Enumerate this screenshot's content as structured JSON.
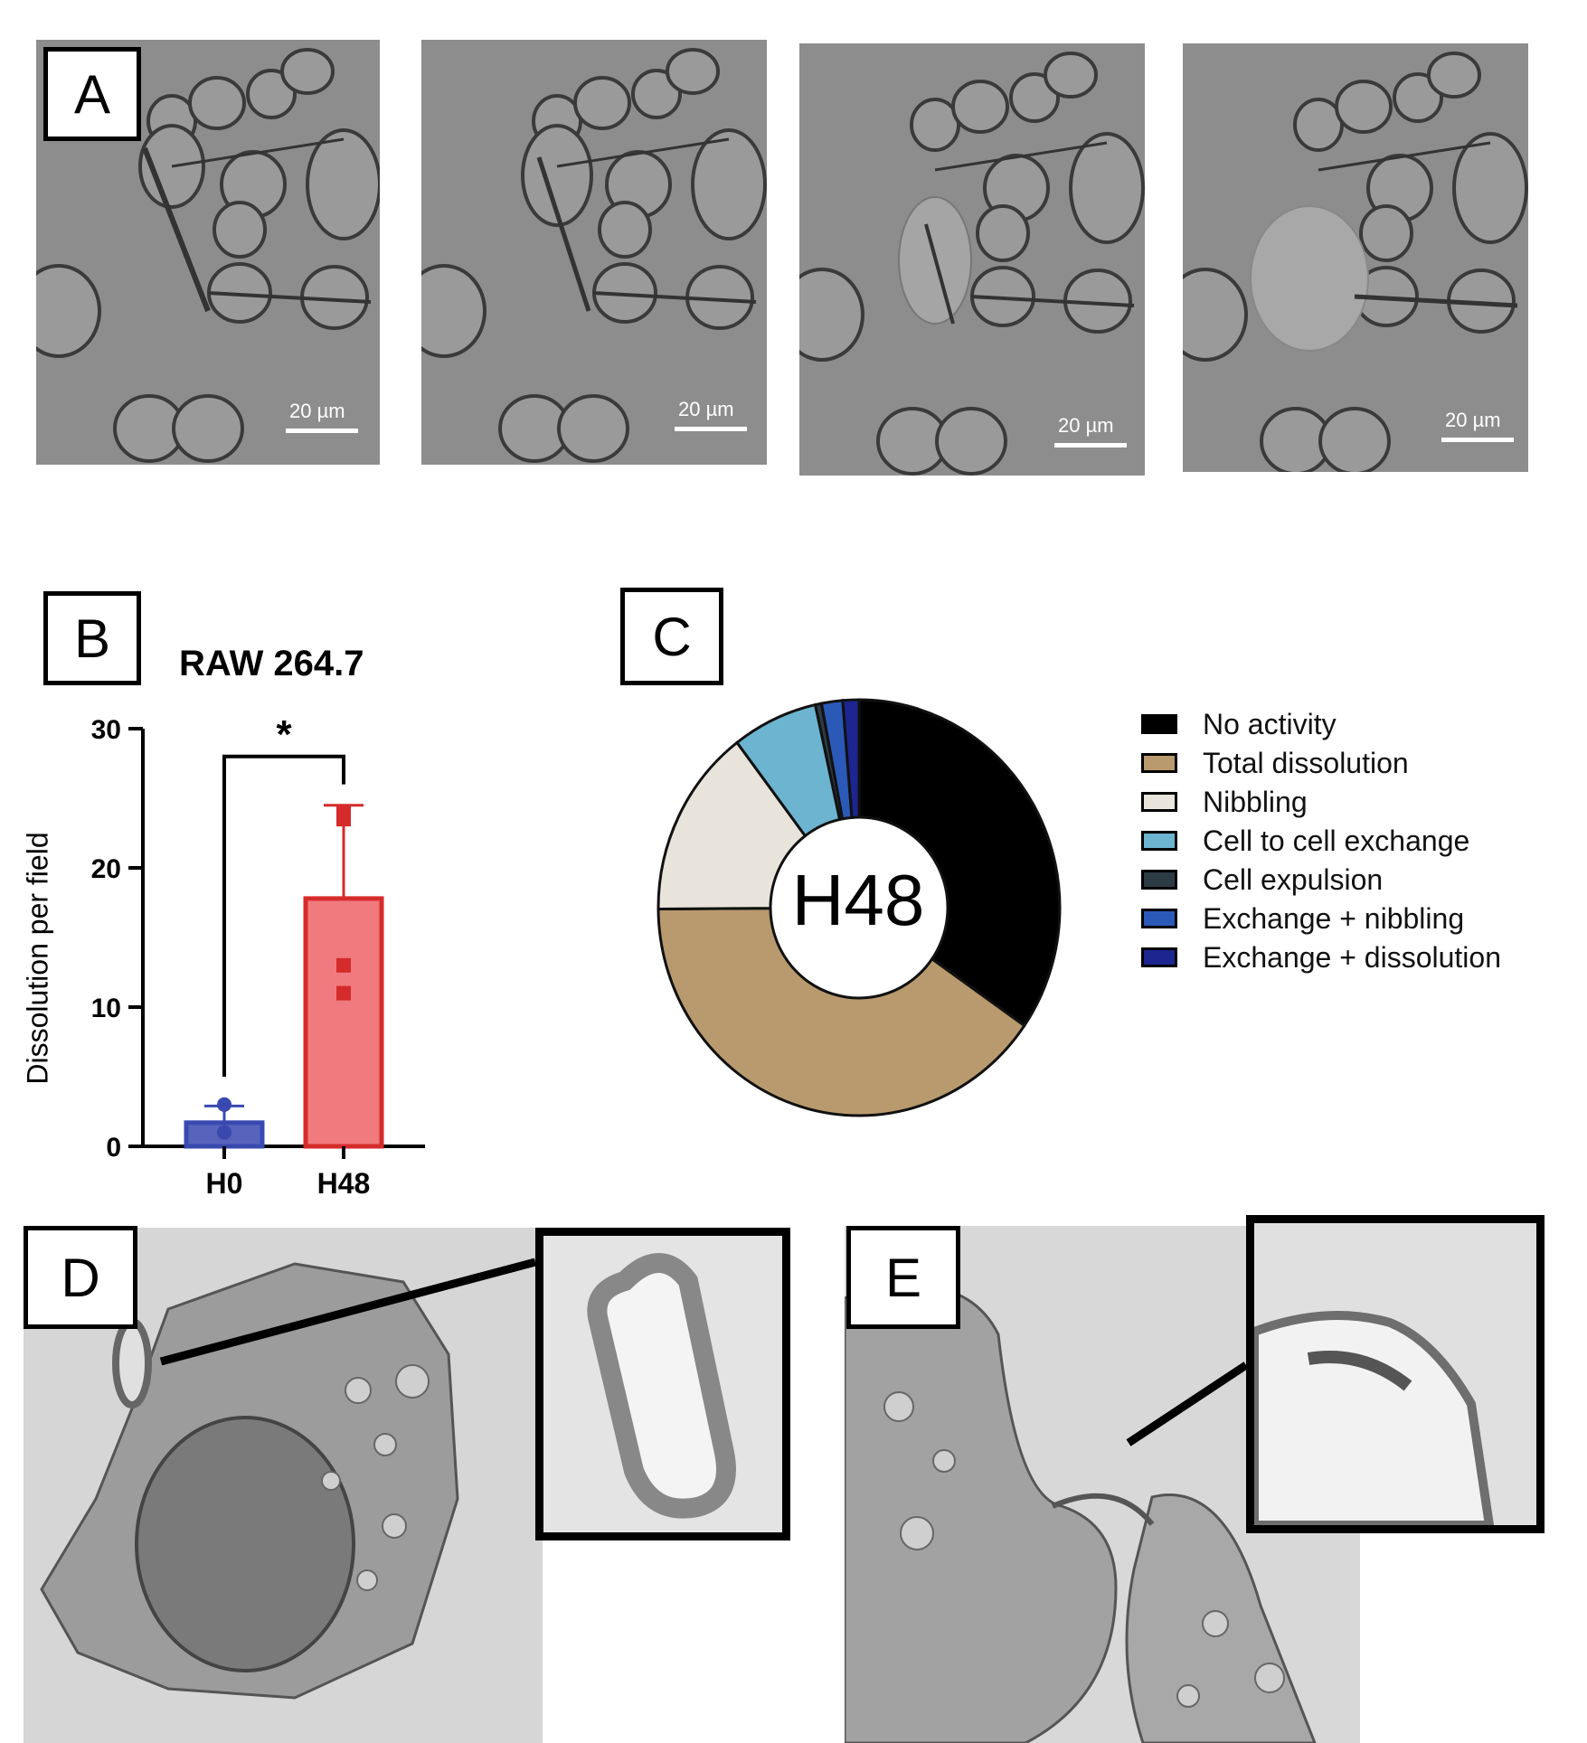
{
  "panelA": {
    "label": "A",
    "frames": [
      {
        "scale_text": "20 µm"
      },
      {
        "scale_text": "20 µm"
      },
      {
        "scale_text": "20 µm"
      },
      {
        "scale_text": "20 µm"
      }
    ]
  },
  "panelB": {
    "label": "B",
    "chart_data": {
      "type": "bar",
      "title": "RAW 264.7",
      "ylabel": "Dissolution per field",
      "xlabel": "",
      "categories": [
        "H0",
        "H48"
      ],
      "values": [
        1.7,
        17.8
      ],
      "error_upper": [
        2.9,
        24.5
      ],
      "points": [
        [
          3.0,
          1.0,
          1.0,
          1.0
        ],
        [
          24.0,
          23.5,
          13.0,
          11.0
        ]
      ],
      "ylim": [
        0,
        30
      ],
      "yticks": [
        0,
        10,
        20,
        30
      ],
      "significance": "*",
      "colors": {
        "H0": "#3a49b0",
        "H48": "#d62b2b",
        "H48_fill": "#f07a7e"
      }
    }
  },
  "panelC": {
    "label": "C",
    "chart_data": {
      "type": "pie",
      "center_label": "H48",
      "slices": [
        {
          "name": "No activity",
          "value": 34.6,
          "color": "#000000"
        },
        {
          "name": "Total dissolution",
          "value": 40.3,
          "color": "#b89a6e"
        },
        {
          "name": "Nibbling",
          "value": 14.7,
          "color": "#e8e4dc"
        },
        {
          "name": "Cell to cell exchange",
          "value": 6.9,
          "color": "#6cb4d0"
        },
        {
          "name": "Cell expulsion",
          "value": 0.5,
          "color": "#2d3b45"
        },
        {
          "name": "Exchange + nibbling",
          "value": 1.7,
          "color": "#2b59b8"
        },
        {
          "name": "Exchange + dissolution",
          "value": 1.3,
          "color": "#1c2590"
        }
      ]
    }
  },
  "panelD": {
    "label": "D"
  },
  "panelE": {
    "label": "E"
  }
}
